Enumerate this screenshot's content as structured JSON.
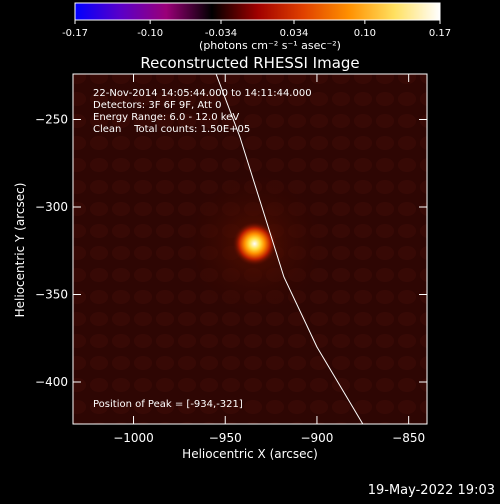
{
  "colorbar": {
    "tick_labels": [
      "-0.17",
      "-0.10",
      "-0.034",
      "0.034",
      "0.10",
      "0.17"
    ],
    "tick_values": [
      -0.17,
      -0.1,
      -0.034,
      0.034,
      0.1,
      0.17
    ],
    "range": [
      -0.17,
      0.17
    ],
    "units_label": "(photons cm⁻² s⁻¹ asec⁻²)",
    "colors": [
      "#0000ff",
      "#5a00c8",
      "#9a0078",
      "#000000",
      "#a00000",
      "#e04000",
      "#ff9000",
      "#ffe060",
      "#ffffff"
    ]
  },
  "chart_data": {
    "type": "heatmap",
    "title": "Reconstructed RHESSI Image",
    "xlabel": "Heliocentric X (arcsec)",
    "ylabel": "Heliocentric Y (arcsec)",
    "xlim": [
      -1033,
      -840
    ],
    "ylim": [
      -424,
      -224
    ],
    "x_ticks": [
      -1000,
      -950,
      -900,
      -850
    ],
    "x_tick_labels": [
      "−1000",
      "−950",
      "−900",
      "−850"
    ],
    "y_ticks": [
      -250,
      -300,
      -350,
      -400
    ],
    "y_tick_labels": [
      "−250",
      "−300",
      "−350",
      "−400"
    ],
    "peak": {
      "x": -934,
      "y": -321,
      "intensity": 0.17
    },
    "limb": [
      [
        -955,
        -224
      ],
      [
        -942,
        -260
      ],
      [
        -930,
        -300
      ],
      [
        -918,
        -340
      ],
      [
        -900,
        -380
      ],
      [
        -875,
        -424
      ]
    ],
    "annotations": [
      "22-Nov-2014 14:05:44.000 to 14:11:44.000",
      "Detectors: 3F 6F 9F, Att 0",
      "Energy Range: 6.0 - 12.0 keV",
      "Clean    Total counts: 1.50E+05",
      "Position of Peak = [-934,-321]"
    ],
    "grid": false
  },
  "timestamp": "19-May-2022 19:03"
}
